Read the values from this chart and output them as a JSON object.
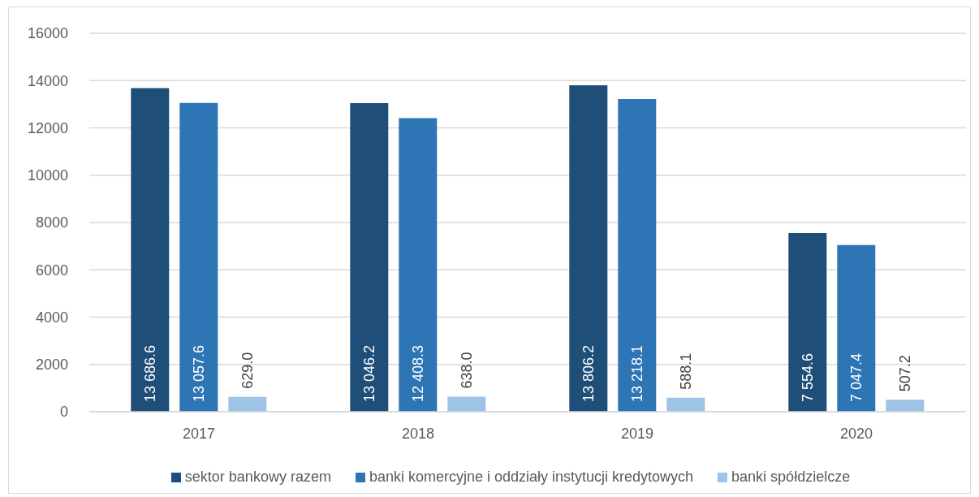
{
  "chart_data": {
    "type": "bar",
    "categories": [
      "2017",
      "2018",
      "2019",
      "2020"
    ],
    "series": [
      {
        "name": "sektor bankowy razem",
        "color": "#1f4e79",
        "values": [
          13686.6,
          13046.2,
          13806.2,
          7554.6
        ],
        "value_labels": [
          "13 686.6",
          "13 046.2",
          "13 806.2",
          "7 554.6"
        ]
      },
      {
        "name": "banki komercyjne i oddziały instytucji kredytowych",
        "color": "#2e75b6",
        "values": [
          13057.6,
          12408.3,
          13218.1,
          7047.4
        ],
        "value_labels": [
          "13 057.6",
          "12 408.3",
          "13 218.1",
          "7 047.4"
        ]
      },
      {
        "name": "banki spółdzielcze",
        "color": "#9dc3e6",
        "values": [
          629.0,
          638.0,
          588.1,
          507.2
        ],
        "value_labels": [
          "629.0",
          "638.0",
          "588.1",
          "507.2"
        ]
      }
    ],
    "ylim": [
      0,
      16000
    ],
    "yticks": [
      0,
      2000,
      4000,
      6000,
      8000,
      10000,
      12000,
      14000,
      16000
    ],
    "grid": "y",
    "legend": "bottom"
  }
}
